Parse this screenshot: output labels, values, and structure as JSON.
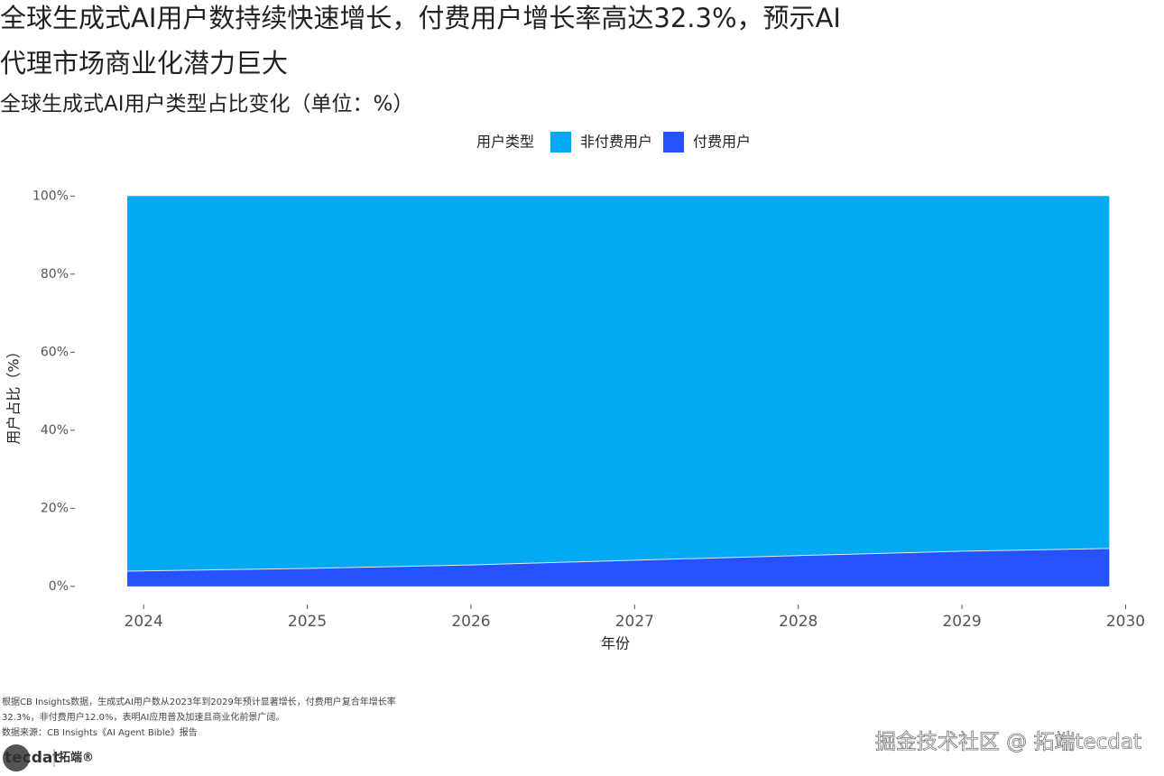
{
  "chart_data": {
    "type": "stacked_area",
    "title": [
      "全球生成式AI用户数持续快速增长，付费用户增长率高达32.3%，预示AI",
      "代理市场商业化潜力巨大"
    ],
    "subtitle": "全球生成式AI用户类型占比变化（单位：%）",
    "legend_title": "用户类型",
    "x_label": "年份",
    "y_label": "用户占比（%）",
    "x": [
      2023.9,
      2025,
      2026,
      2027,
      2028,
      2029,
      2029.9
    ],
    "series": [
      {
        "name": "非付费用户",
        "color": "#03a9f1",
        "values": [
          96.1,
          95.4,
          94.5,
          93.3,
          92.1,
          91.0,
          90.3
        ]
      },
      {
        "name": "付费用户",
        "color": "#2453ff",
        "values": [
          3.9,
          4.6,
          5.5,
          6.7,
          7.9,
          9.0,
          9.7
        ]
      }
    ],
    "xlim": [
      2023.58,
      2030.08
    ],
    "xticks": [
      2024,
      2025,
      2026,
      2027,
      2028,
      2029,
      2030
    ],
    "ylim": [
      -3.5,
      104
    ],
    "yticks": [
      {
        "value": 0,
        "label": "0%"
      },
      {
        "value": 20,
        "label": "20%"
      },
      {
        "value": 40,
        "label": "40%"
      },
      {
        "value": 60,
        "label": "60%"
      },
      {
        "value": 80,
        "label": "80%"
      },
      {
        "value": 100,
        "label": "100%"
      }
    ],
    "legend": "top",
    "caption": [
      "根据CB Insights数据，生成式AI用户数从2023年到2029年预计显著增长，付费用户复合年增长率",
      "32.3%，非付费用户12.0%，表明AI应用普及加速且商业化前景广阔。",
      "数据来源：CB Insights《AI Agent Bible》报告"
    ],
    "logo": "tecdat",
    "logo_text": "拓端®",
    "watermark": "掘金技术社区 @ 拓端tecdat"
  }
}
